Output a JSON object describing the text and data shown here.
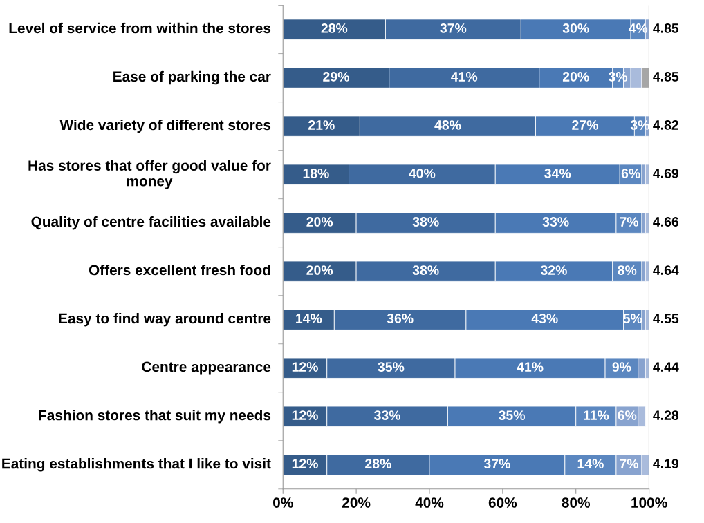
{
  "chart_data": {
    "type": "bar",
    "orientation": "horizontal",
    "stacked": true,
    "grid": false,
    "legend": false,
    "categories": [
      "Level of service from within the stores",
      "Ease of parking the car",
      "Wide variety of different stores",
      "Has stores that offer good value for money",
      "Quality of centre facilities available",
      "Offers excellent fresh food",
      "Easy to find way around centre",
      "Centre appearance",
      "Fashion stores that suit my needs",
      "Eating establishments that I like to visit"
    ],
    "series": [
      {
        "color": "#355c8a",
        "values": [
          28,
          29,
          21,
          18,
          20,
          20,
          14,
          12,
          12,
          12
        ],
        "value_labels": [
          "28%",
          "29%",
          "21%",
          "18%",
          "20%",
          "20%",
          "14%",
          "12%",
          "12%",
          "12%"
        ]
      },
      {
        "color": "#3f6aa0",
        "values": [
          37,
          41,
          48,
          40,
          38,
          38,
          36,
          35,
          33,
          28
        ],
        "value_labels": [
          "37%",
          "41%",
          "48%",
          "40%",
          "38%",
          "38%",
          "36%",
          "35%",
          "33%",
          "28%"
        ]
      },
      {
        "color": "#4a79b5",
        "values": [
          30,
          20,
          27,
          34,
          33,
          32,
          43,
          41,
          35,
          37
        ],
        "value_labels": [
          "30%",
          "20%",
          "27%",
          "34%",
          "33%",
          "32%",
          "43%",
          "41%",
          "35%",
          "37%"
        ]
      },
      {
        "color": "#5b87c0",
        "values": [
          4,
          3,
          3,
          6,
          7,
          8,
          5,
          9,
          11,
          14
        ],
        "value_labels": [
          "4%",
          "3%",
          "3%",
          "6%",
          "7%",
          "8%",
          "5%",
          "9%",
          "11%",
          "14%"
        ]
      },
      {
        "color": "#88a3cf",
        "values": [
          1,
          2,
          1,
          1,
          1,
          1,
          1,
          2,
          6,
          7
        ],
        "value_labels": [
          null,
          null,
          null,
          null,
          null,
          null,
          null,
          null,
          "6%",
          "7%"
        ]
      },
      {
        "color": "#a9bbdc",
        "values": [
          null,
          3,
          null,
          1,
          1,
          1,
          1,
          1,
          2,
          2
        ],
        "value_labels": [
          null,
          null,
          null,
          null,
          null,
          null,
          null,
          null,
          null,
          null
        ]
      },
      {
        "color": "#a6a6a6",
        "values": [
          null,
          2,
          null,
          null,
          null,
          null,
          null,
          null,
          null,
          null
        ],
        "value_labels": [
          null,
          null,
          null,
          null,
          null,
          null,
          null,
          null,
          null,
          null
        ]
      }
    ],
    "xlim": [
      0,
      100
    ],
    "xticks": [
      {
        "value": 0,
        "label": "0%"
      },
      {
        "value": 20,
        "label": "20%"
      },
      {
        "value": 40,
        "label": "40%"
      },
      {
        "value": 60,
        "label": "60%"
      },
      {
        "value": 80,
        "label": "80%"
      },
      {
        "value": 100,
        "label": "100%"
      }
    ],
    "annotations": [
      "4.85",
      "4.85",
      "4.82",
      "4.69",
      "4.66",
      "4.64",
      "4.55",
      "4.44",
      "4.28",
      "4.19"
    ]
  }
}
